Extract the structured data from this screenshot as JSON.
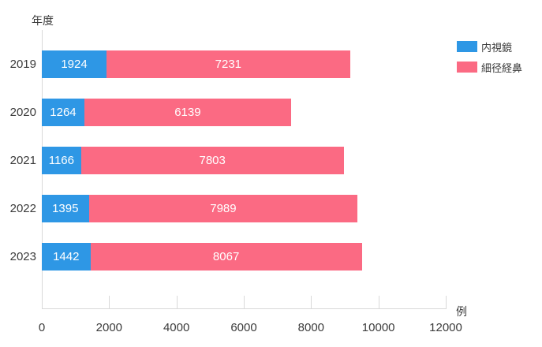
{
  "chart_data": {
    "type": "bar",
    "orientation": "horizontal",
    "stacked": true,
    "title": "",
    "ylabel": "年度",
    "xunit": "例",
    "categories": [
      "2019",
      "2020",
      "2021",
      "2022",
      "2023"
    ],
    "series": [
      {
        "key": "endoscope",
        "name": "内視鏡",
        "color": "#2E97E5",
        "values": [
          1924,
          1264,
          1166,
          1395,
          1442
        ]
      },
      {
        "key": "transnasal",
        "name": "細径経鼻",
        "color": "#FB6A83",
        "values": [
          7231,
          6139,
          7803,
          7989,
          8067
        ]
      }
    ],
    "totals": [
      9155,
      7403,
      8969,
      9384,
      9509
    ],
    "xlim": [
      0,
      12000
    ],
    "xticks": [
      0,
      2000,
      4000,
      6000,
      8000,
      10000,
      12000
    ],
    "legend_position": "top-right",
    "grid": false,
    "value_labels": "inside-white",
    "axis_color": "#d9d9d9",
    "text_color": "#3b3b3b",
    "background_color": "#ffffff"
  }
}
